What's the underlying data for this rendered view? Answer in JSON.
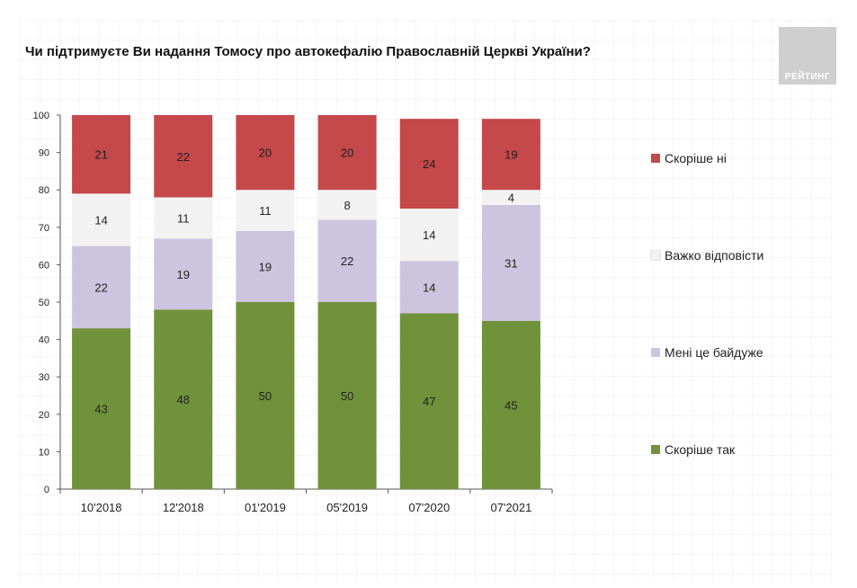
{
  "title": "Чи підтримуєте Ви надання Томосу про автокефалію Православній Церкві України?",
  "logo": {
    "text": "РЕЙТИНГ"
  },
  "colors": {
    "skorishe_ni": "#c5484a",
    "vazhko": "#f2f2f2",
    "baiduzhe": "#cdc4e0",
    "skorishe_tak": "#6f923b"
  },
  "chart_data": {
    "type": "bar",
    "stacked": true,
    "categories": [
      "10'2018",
      "12'2018",
      "01'2019",
      "05'2019",
      "07'2020",
      "07'2021"
    ],
    "series": [
      {
        "name": "Скоріше так",
        "values": [
          43,
          48,
          50,
          50,
          47,
          45
        ],
        "color": "#6f923b"
      },
      {
        "name": "Мені це байдуже",
        "values": [
          22,
          19,
          19,
          22,
          14,
          31
        ],
        "color": "#cdc4e0"
      },
      {
        "name": "Важко відповісти",
        "values": [
          14,
          11,
          11,
          8,
          14,
          4
        ],
        "color": "#f2f2f2"
      },
      {
        "name": "Скоріше ні",
        "values": [
          21,
          22,
          20,
          20,
          24,
          19
        ],
        "color": "#c5484a"
      }
    ],
    "ylim": [
      0,
      100
    ],
    "yticks": [
      0,
      10,
      20,
      30,
      40,
      50,
      60,
      70,
      80,
      90,
      100
    ],
    "legend_position": "right",
    "grid": false
  },
  "legend": [
    {
      "label": "Скоріше ні",
      "color": "#c5484a"
    },
    {
      "label": "Важко відповісти",
      "color": "#f2f2f2"
    },
    {
      "label": "Мені це байдуже",
      "color": "#cdc4e0"
    },
    {
      "label": "Скоріше так",
      "color": "#6f923b"
    }
  ]
}
